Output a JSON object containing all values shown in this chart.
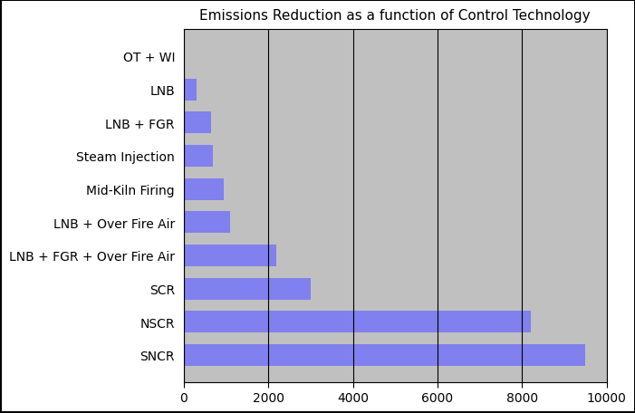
{
  "title": "Emissions Reduction as a function of Control Technology",
  "categories": [
    "SNCR",
    "NSCR",
    "SCR",
    "LNB + FGR + Over Fire Air",
    "LNB + Over Fire Air",
    "Mid-Kiln Firing",
    "Steam Injection",
    "LNB + FGR",
    "LNB",
    "OT + WI"
  ],
  "values": [
    9500,
    8200,
    3000,
    2200,
    1100,
    950,
    700,
    650,
    300,
    0
  ],
  "bar_color": "#8080ee",
  "plot_bg_color": "#c0c0c0",
  "fig_bg_color": "#ffffff",
  "border_color": "#000000",
  "xlim": [
    0,
    10000
  ],
  "xticks": [
    0,
    2000,
    4000,
    6000,
    8000,
    10000
  ],
  "title_fontsize": 11,
  "tick_fontsize": 10,
  "label_fontsize": 10
}
